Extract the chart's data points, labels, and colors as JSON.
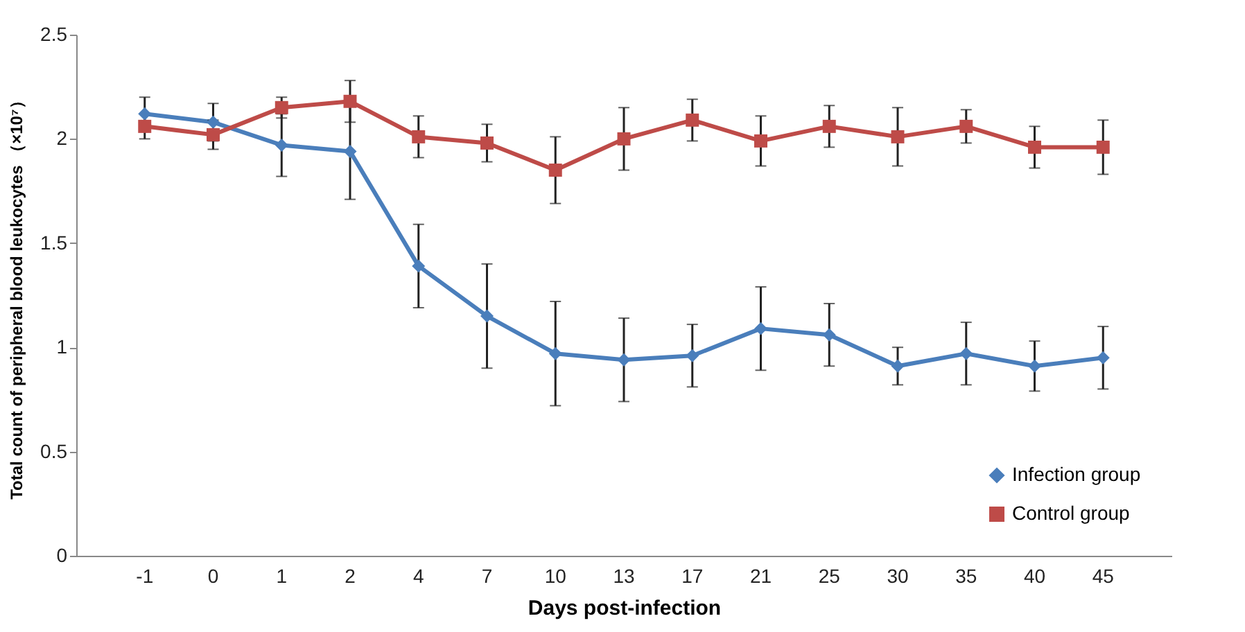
{
  "chart_data": {
    "type": "line",
    "xlabel": "Days post-infection",
    "ylabel": "Total count of peripheral blood leukocytes （×10⁷）",
    "categories": [
      "-1",
      "0",
      "1",
      "2",
      "4",
      "7",
      "10",
      "13",
      "17",
      "21",
      "25",
      "30",
      "35",
      "40",
      "45"
    ],
    "ylim": [
      0,
      2.5
    ],
    "yticks": [
      0,
      0.5,
      1,
      1.5,
      2,
      2.5
    ],
    "grid": false,
    "legend": "bottom right",
    "series": [
      {
        "name": "Infection group",
        "color": "#4a7ebb",
        "marker": "diamond",
        "values": [
          2.12,
          2.08,
          1.97,
          1.94,
          1.39,
          1.15,
          0.97,
          0.94,
          0.96,
          1.09,
          1.06,
          0.91,
          0.97,
          0.91,
          0.95
        ],
        "errors": [
          0.08,
          0.09,
          0.15,
          0.23,
          0.2,
          0.25,
          0.25,
          0.2,
          0.15,
          0.2,
          0.15,
          0.09,
          0.15,
          0.12,
          0.15
        ]
      },
      {
        "name": "Control group",
        "color": "#be4b48",
        "marker": "square",
        "values": [
          2.06,
          2.02,
          2.15,
          2.18,
          2.01,
          1.98,
          1.85,
          2.0,
          2.09,
          1.99,
          2.06,
          2.01,
          2.06,
          1.96,
          1.96
        ],
        "errors": [
          0.06,
          0.07,
          0.05,
          0.1,
          0.1,
          0.09,
          0.16,
          0.15,
          0.1,
          0.12,
          0.1,
          0.14,
          0.08,
          0.1,
          0.13
        ]
      }
    ]
  }
}
